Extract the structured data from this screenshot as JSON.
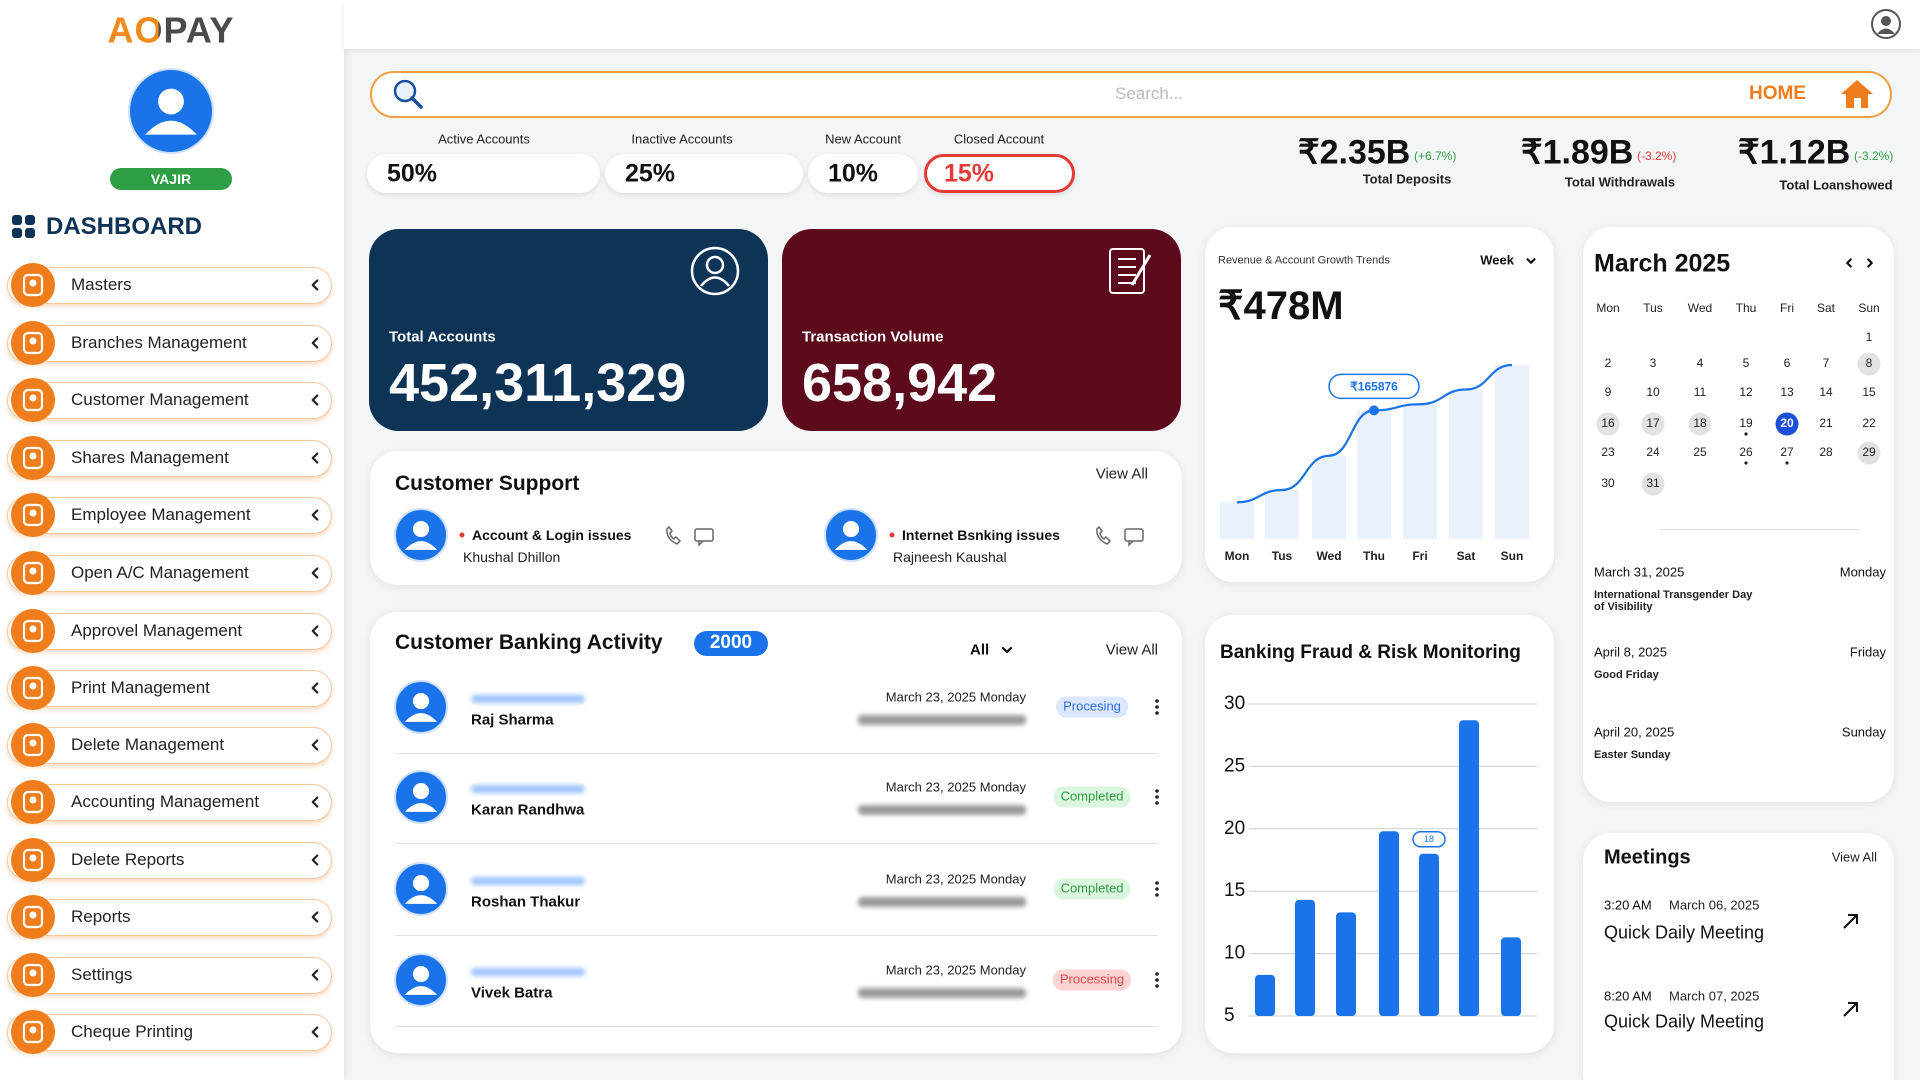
{
  "sidebar": {
    "logo": "AOPAY",
    "user_name": "VAJIR",
    "section_title": "DASHBOARD",
    "menu": [
      "Masters",
      "Branches Management",
      "Customer Management",
      "Shares Management",
      "Employee Management",
      "Open A/C Management",
      "Approvel Management",
      "Print Management",
      "Delete Management",
      "Accounting Management",
      "Delete Reports",
      "Reports",
      "Settings",
      "Cheque Printing"
    ]
  },
  "search": {
    "placeholder": "Search...",
    "home": "HOME"
  },
  "account_stats": [
    {
      "label": "Active Accounts",
      "value": "50%",
      "border_color": "#ffffff"
    },
    {
      "label": "Inactive Accounts",
      "value": "25%",
      "border_color": "#ffffff"
    },
    {
      "label": "New Account",
      "value": "10%",
      "border_color": "#ffffff"
    },
    {
      "label": "Closed Account",
      "value": "15%",
      "border_color": "#e53935"
    }
  ],
  "totals": [
    {
      "value": "₹2.35B",
      "change": "(+6.7%)",
      "change_color": "#2e9e44",
      "label": "Total Deposits"
    },
    {
      "value": "₹1.89B",
      "change": "(-3.2%)",
      "change_color": "#e53935",
      "label": "Total Withdrawals"
    },
    {
      "value": "₹1.12B",
      "change": "(-3.2%)",
      "change_color": "#2e9e44",
      "label": "Total Loanshowed"
    }
  ],
  "kpi_cards": [
    {
      "label": "Total Accounts",
      "value": "452,311,329",
      "color": "#0d3356"
    },
    {
      "label": "Transaction Volume",
      "value": "658,942",
      "color": "#5c0a1c"
    }
  ],
  "customer_support": {
    "title": "Customer Support",
    "view_all": "View All",
    "tickets": [
      {
        "issue": "Account & Login issues",
        "name": "Khushal Dhillon"
      },
      {
        "issue": "Internet Bsnking issues",
        "name": "Rajneesh Kaushal"
      }
    ]
  },
  "banking_activity": {
    "title": "Customer Banking Activity",
    "count": "2000",
    "filter": "All",
    "view_all": "View All",
    "rows": [
      {
        "name": "Raj Sharma",
        "date": "March 23, 2025 Monday",
        "status": "Procesing",
        "status_color": "#2f6fe0",
        "status_bg": "#dce8ff"
      },
      {
        "name": "Karan Randhwa",
        "date": "March 23, 2025 Monday",
        "status": "Completed",
        "status_color": "#2e9e44",
        "status_bg": "#dcf5df"
      },
      {
        "name": "Roshan Thakur",
        "date": "March 23, 2025 Monday",
        "status": "Completed",
        "status_color": "#2e9e44",
        "status_bg": "#dcf5df"
      },
      {
        "name": "Vivek Batra",
        "date": "March 23, 2025 Monday",
        "status": "Processing",
        "status_color": "#e04848",
        "status_bg": "#fbd3d3"
      }
    ]
  },
  "revenue_chart": {
    "type": "line",
    "title": "Revenue & Account Growth Trends",
    "period": "Week",
    "total": "₹478M",
    "categories": [
      "Mon",
      "Tus",
      "Wed",
      "Thu",
      "Fri",
      "Sat",
      "Sun"
    ],
    "values": [
      47400,
      63200,
      107400,
      165876,
      173800,
      192800,
      224400
    ],
    "value_labels": [
      null,
      null,
      null,
      "₹165876",
      null,
      null,
      null
    ],
    "color": "#1a73e8",
    "bar_color": "#e9f1fc"
  },
  "fraud_chart": {
    "type": "bar",
    "title": "Banking Fraud & Risk Monitoring",
    "values": [
      8.3,
      14.3,
      13.3,
      19.8,
      18,
      28.7,
      11.3
    ],
    "value_labels": [
      null,
      null,
      null,
      null,
      "18",
      null,
      null
    ],
    "ylim": [
      5,
      30
    ],
    "yticks": [
      5,
      10,
      15,
      20,
      25,
      30
    ],
    "grid": true,
    "color": "#1a73e8"
  },
  "calendar": {
    "title": "March 2025",
    "weekdays": [
      "Mon",
      "Tus",
      "Wed",
      "Thu",
      "Fri",
      "Sat",
      "Sun"
    ],
    "weeks": [
      [
        null,
        null,
        null,
        null,
        null,
        null,
        1
      ],
      [
        2,
        3,
        4,
        5,
        6,
        7,
        8
      ],
      [
        9,
        10,
        11,
        12,
        13,
        14,
        15
      ],
      [
        16,
        17,
        18,
        19,
        20,
        21,
        22
      ],
      [
        23,
        24,
        25,
        26,
        27,
        28,
        29
      ],
      [
        30,
        31,
        null,
        null,
        null,
        null,
        null
      ]
    ],
    "selected": 20,
    "marked": [
      8,
      16,
      17,
      18,
      29,
      31
    ],
    "dotted": [
      19,
      26,
      27
    ],
    "events": [
      {
        "date": "March 31, 2025",
        "weekday": "Monday",
        "name": "International Transgender Day of Visibility"
      },
      {
        "date": "April 8, 2025",
        "weekday": "Friday",
        "name": "Good Friday"
      },
      {
        "date": "April 20, 2025",
        "weekday": "Sunday",
        "name": "Easter Sunday"
      }
    ]
  },
  "meetings": {
    "title": "Meetings",
    "view_all": "View All",
    "items": [
      {
        "time": "3:20 AM",
        "date": "March 06, 2025",
        "title": "Quick Daily Meeting"
      },
      {
        "time": "8:20 AM",
        "date": "March 07, 2025",
        "title": "Quick Daily Meeting"
      }
    ]
  }
}
